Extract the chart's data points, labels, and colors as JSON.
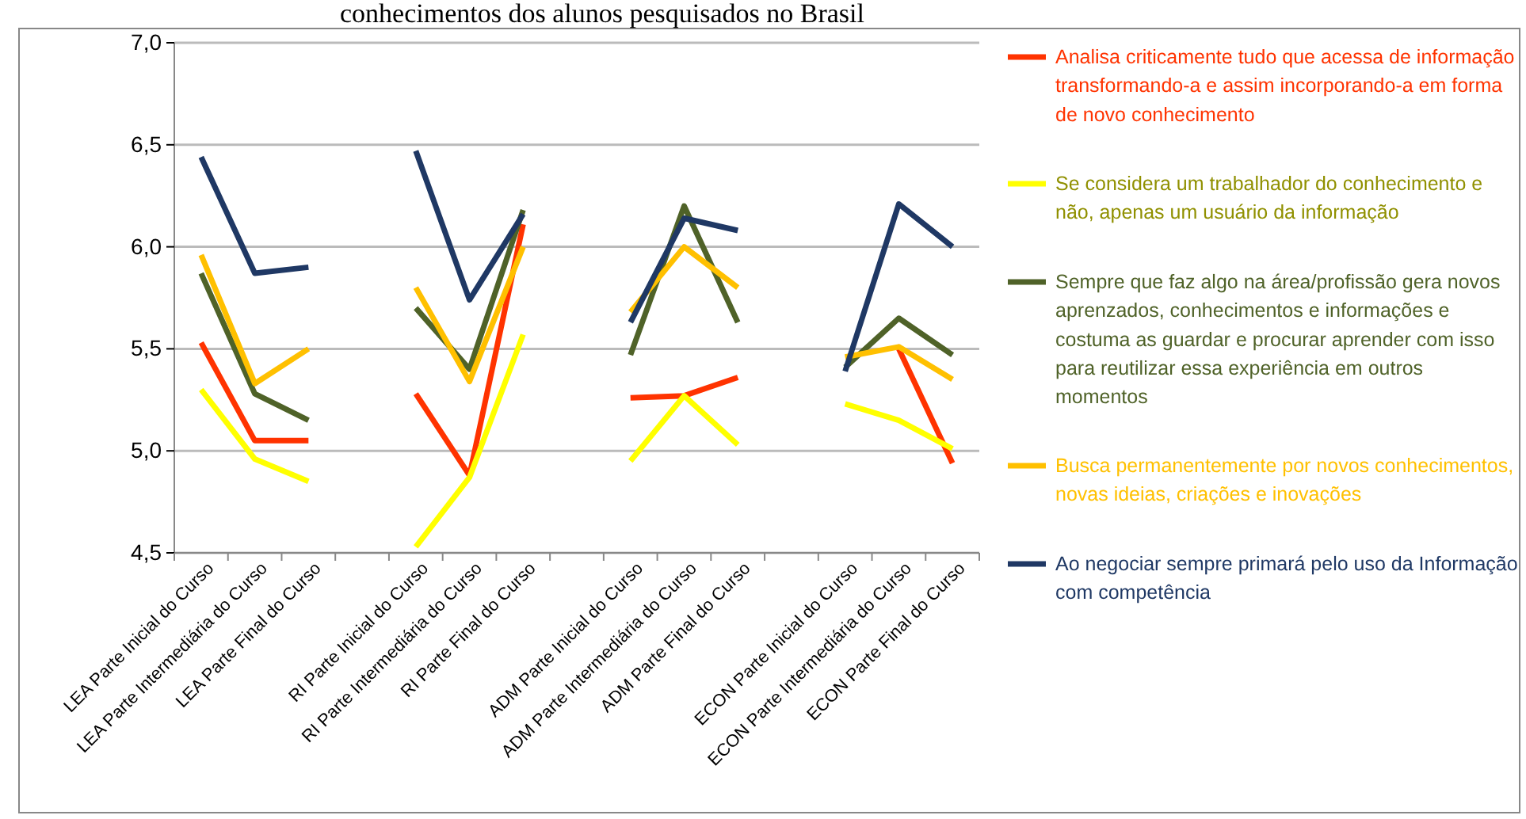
{
  "chart_data": {
    "type": "line",
    "title": "conhecimentos dos alunos pesquisados no Brasil",
    "categories": [
      "LEA Parte Inicial do Curso",
      "LEA Parte Intermediária do Curso",
      "LEA Parte Final do Curso",
      null,
      "RI Parte Inicial do Curso",
      "RI Parte Intermediária do Curso",
      "RI Parte Final do Curso",
      null,
      "ADM Parte Inicial do Curso",
      "ADM Parte Intermediária do Curso",
      "ADM Parte Final do Curso",
      null,
      "ECON Parte Inicial do Curso",
      "ECON Parte Intermediária do Curso",
      "ECON Parte Final do Curso"
    ],
    "series": [
      {
        "name": "Analisa criticamente tudo que acessa de informação transformando-a e assim incorporando-a em forma de novo conhecimento",
        "color": "#ff3300",
        "values": [
          5.53,
          5.05,
          5.05,
          null,
          5.28,
          4.88,
          6.11,
          null,
          5.26,
          5.27,
          5.36,
          null,
          null,
          5.5,
          4.94
        ]
      },
      {
        "name": "Se considera um trabalhador do conhecimento e não, apenas um usuário da informação",
        "color": "#ffff00",
        "values": [
          5.3,
          4.96,
          4.85,
          null,
          4.53,
          4.87,
          5.57,
          null,
          4.95,
          5.27,
          5.03,
          null,
          5.23,
          5.15,
          5.01
        ]
      },
      {
        "name": "Sempre que faz algo na área/profissão gera novos aprenzados, conhecimentos e informações e costuma as guardar e procurar aprender com isso para reutilizar essa experiência em outros momentos",
        "color": "#4f6228",
        "values": [
          5.87,
          5.28,
          5.15,
          null,
          5.7,
          5.4,
          6.18,
          null,
          5.47,
          6.2,
          5.63,
          null,
          5.41,
          5.65,
          5.47
        ]
      },
      {
        "name": "Busca permanentemente por novos conhecimentos, novas ideias, criações e inovações",
        "color": "#ffc000",
        "values": [
          5.96,
          5.33,
          5.5,
          null,
          5.8,
          5.34,
          6.0,
          null,
          5.68,
          6.0,
          5.8,
          null,
          5.46,
          5.51,
          5.35
        ]
      },
      {
        "name": "Ao negociar sempre primará pelo uso da Informação com competência",
        "color": "#1f3864",
        "values": [
          6.44,
          5.87,
          5.9,
          null,
          6.47,
          5.74,
          6.16,
          null,
          5.63,
          6.14,
          6.08,
          null,
          5.39,
          6.21,
          6.0
        ]
      }
    ],
    "ylim": [
      4.5,
      7.0
    ],
    "yticks": [
      {
        "value": 4.5,
        "label": "4,5"
      },
      {
        "value": 5.0,
        "label": "5,0"
      },
      {
        "value": 5.5,
        "label": "5,5"
      },
      {
        "value": 6.0,
        "label": "6,0"
      },
      {
        "value": 6.5,
        "label": "6,5"
      },
      {
        "value": 7.0,
        "label": "7,0"
      }
    ],
    "grid": "y",
    "legend": "right",
    "marker": "none",
    "line_style": "solid"
  }
}
